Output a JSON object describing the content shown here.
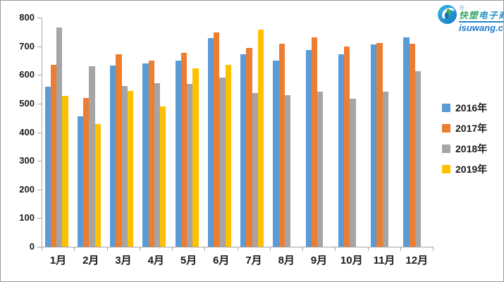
{
  "page": {
    "background": "#ffffff",
    "border_color": "#9b9b9b"
  },
  "logo": {
    "reg_mark": "®",
    "brand_part1": "快塑",
    "brand_part2": "电子商",
    "domain": "isuwang.co",
    "brand_green": "#3aa865",
    "brand_blue": "#2291c9",
    "domain_color": "#1679d0"
  },
  "chart_data": {
    "type": "bar",
    "title": "",
    "xlabel": "",
    "ylabel": "",
    "categories": [
      "1月",
      "2月",
      "3月",
      "4月",
      "5月",
      "6月",
      "7月",
      "8月",
      "9月",
      "10月",
      "11月",
      "12月"
    ],
    "series": [
      {
        "name": "2016年",
        "color": "#5B9BD5",
        "values": [
          560,
          455,
          632,
          641,
          650,
          728,
          672,
          651,
          687,
          673,
          706,
          731
        ]
      },
      {
        "name": "2017年",
        "color": "#ED7D31",
        "values": [
          636,
          520,
          671,
          651,
          677,
          749,
          695,
          709,
          730,
          698,
          712,
          710
        ]
      },
      {
        "name": "2018年",
        "color": "#A5A5A5",
        "values": [
          766,
          629,
          561,
          571,
          569,
          591,
          537,
          529,
          541,
          518,
          541,
          614
        ]
      },
      {
        "name": "2019年",
        "color": "#FFC000",
        "values": [
          528,
          428,
          543,
          489,
          622,
          634,
          758,
          null,
          null,
          null,
          null,
          null
        ]
      }
    ],
    "ylim": [
      0,
      800
    ],
    "y_ticks": [
      800,
      700,
      600,
      500,
      400,
      300,
      200,
      100,
      0
    ],
    "grid": false,
    "legend_position": "right",
    "axis_color": "#a6a6a6",
    "label_color": "#1a1a1a"
  }
}
